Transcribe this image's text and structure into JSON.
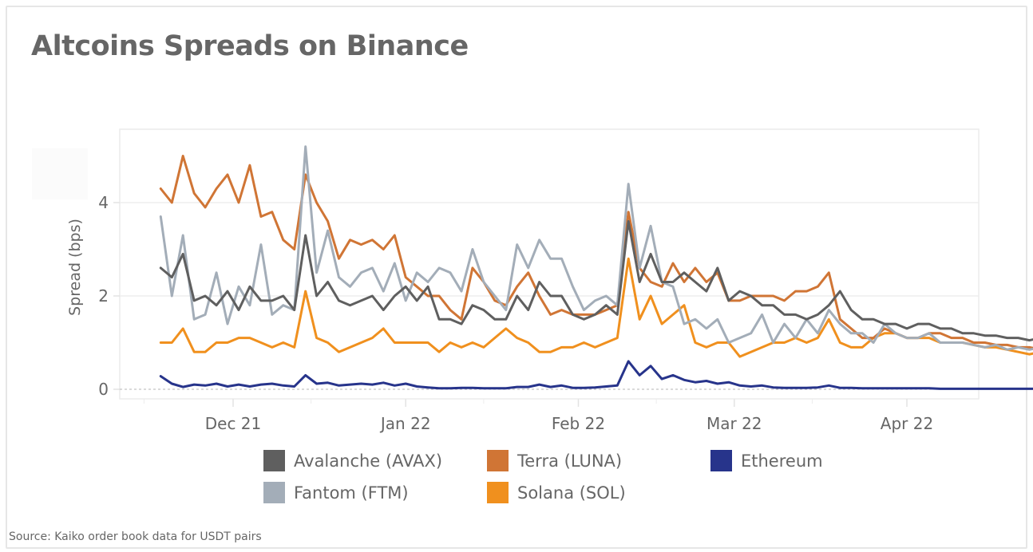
{
  "title": "Altcoins Spreads on Binance",
  "source": "Source: Kaiko order book data for USDT pairs",
  "chart_data": {
    "type": "line",
    "title": "Altcoins Spreads on Binance",
    "xlabel": "",
    "ylabel": "Spread (bps)",
    "ylim": [
      0,
      5.5
    ],
    "yticks": [
      0,
      2,
      4
    ],
    "ytick_labels": [
      "0",
      "2",
      "4"
    ],
    "xlim": [
      "2021-11-17",
      "2022-04-13"
    ],
    "xticks": [
      "2021-12-01",
      "2022-01-01",
      "2022-02-01",
      "2022-03-01",
      "2022-04-01"
    ],
    "xtick_labels": [
      "Dec 21",
      "Jan 22",
      "Feb 22",
      "Mar 22",
      "Apr 22"
    ],
    "grid": true,
    "legend_position": "bottom",
    "x_start": "2021-11-18",
    "x_step_days": 2,
    "series": [
      {
        "name": "Avalanche (AVAX)",
        "color": "#5f5f5f",
        "values": [
          2.6,
          2.4,
          2.9,
          1.9,
          2.0,
          1.8,
          2.1,
          1.7,
          2.2,
          1.9,
          1.9,
          2.0,
          1.7,
          3.3,
          2.0,
          2.3,
          1.9,
          1.8,
          1.9,
          2.0,
          1.7,
          2.0,
          2.2,
          1.9,
          2.2,
          1.5,
          1.5,
          1.4,
          1.8,
          1.7,
          1.5,
          1.5,
          2.0,
          1.7,
          2.3,
          2.0,
          2.0,
          1.6,
          1.5,
          1.6,
          1.8,
          1.6,
          3.6,
          2.3,
          2.9,
          2.3,
          2.3,
          2.5,
          2.3,
          2.1,
          2.6,
          1.9,
          2.1,
          2.0,
          1.8,
          1.8,
          1.6,
          1.6,
          1.5,
          1.6,
          1.8,
          2.1,
          1.7,
          1.5,
          1.5,
          1.4,
          1.4,
          1.3,
          1.4,
          1.4,
          1.3,
          1.3,
          1.2,
          1.2,
          1.15,
          1.15,
          1.1,
          1.1,
          1.05,
          1.1
        ]
      },
      {
        "name": "Fantom (FTM)",
        "color": "#a3adb8",
        "values": [
          3.7,
          2.0,
          3.3,
          1.5,
          1.6,
          2.5,
          1.4,
          2.2,
          1.8,
          3.1,
          1.6,
          1.8,
          1.7,
          5.2,
          2.5,
          3.4,
          2.4,
          2.2,
          2.5,
          2.6,
          2.1,
          2.7,
          1.9,
          2.5,
          2.3,
          2.6,
          2.5,
          2.1,
          3.0,
          2.3,
          2.0,
          1.7,
          3.1,
          2.6,
          3.2,
          2.8,
          2.8,
          2.2,
          1.7,
          1.9,
          2.0,
          1.8,
          4.4,
          2.6,
          3.5,
          2.3,
          2.2,
          1.4,
          1.5,
          1.3,
          1.5,
          1.0,
          1.1,
          1.2,
          1.6,
          1.0,
          1.4,
          1.1,
          1.5,
          1.2,
          1.7,
          1.4,
          1.2,
          1.2,
          1.0,
          1.4,
          1.2,
          1.1,
          1.1,
          1.2,
          1.0,
          1.0,
          1.0,
          0.95,
          0.9,
          0.95,
          0.85,
          0.9,
          0.85,
          0.9
        ]
      },
      {
        "name": "Terra (LUNA)",
        "color": "#d07535",
        "values": [
          4.3,
          4.0,
          5.0,
          4.2,
          3.9,
          4.3,
          4.6,
          4.0,
          4.8,
          3.7,
          3.8,
          3.2,
          3.0,
          4.6,
          4.0,
          3.6,
          2.8,
          3.2,
          3.1,
          3.2,
          3.0,
          3.3,
          2.4,
          2.2,
          2.0,
          2.0,
          1.7,
          1.5,
          2.6,
          2.3,
          1.9,
          1.8,
          2.2,
          2.5,
          2.0,
          1.6,
          1.7,
          1.6,
          1.6,
          1.6,
          1.7,
          1.8,
          3.8,
          2.6,
          2.3,
          2.2,
          2.7,
          2.3,
          2.6,
          2.3,
          2.5,
          1.9,
          1.9,
          2.0,
          2.0,
          2.0,
          1.9,
          2.1,
          2.1,
          2.2,
          2.5,
          1.5,
          1.3,
          1.1,
          1.1,
          1.3,
          1.2,
          1.1,
          1.1,
          1.2,
          1.2,
          1.1,
          1.1,
          1.0,
          1.0,
          0.95,
          0.95,
          0.9,
          0.9,
          0.85
        ]
      },
      {
        "name": "Solana (SOL)",
        "color": "#f0901e",
        "values": [
          1.0,
          1.0,
          1.3,
          0.8,
          0.8,
          1.0,
          1.0,
          1.1,
          1.1,
          1.0,
          0.9,
          1.0,
          0.9,
          2.1,
          1.1,
          1.0,
          0.8,
          0.9,
          1.0,
          1.1,
          1.3,
          1.0,
          1.0,
          1.0,
          1.0,
          0.8,
          1.0,
          0.9,
          1.0,
          0.9,
          1.1,
          1.3,
          1.1,
          1.0,
          0.8,
          0.8,
          0.9,
          0.9,
          1.0,
          0.9,
          1.0,
          1.1,
          2.8,
          1.5,
          2.0,
          1.4,
          1.6,
          1.8,
          1.0,
          0.9,
          1.0,
          1.0,
          0.7,
          0.8,
          0.9,
          1.0,
          1.0,
          1.1,
          1.0,
          1.1,
          1.5,
          1.0,
          0.9,
          0.9,
          1.1,
          1.2,
          1.2,
          1.1,
          1.1,
          1.1,
          1.0,
          1.0,
          1.0,
          0.95,
          0.9,
          0.9,
          0.85,
          0.8,
          0.75,
          0.8
        ]
      },
      {
        "name": "Ethereum",
        "color": "#27348b",
        "values": [
          0.28,
          0.12,
          0.05,
          0.1,
          0.08,
          0.12,
          0.06,
          0.1,
          0.06,
          0.1,
          0.12,
          0.08,
          0.06,
          0.3,
          0.12,
          0.14,
          0.08,
          0.1,
          0.12,
          0.1,
          0.14,
          0.08,
          0.12,
          0.06,
          0.04,
          0.02,
          0.02,
          0.03,
          0.03,
          0.02,
          0.02,
          0.02,
          0.05,
          0.05,
          0.1,
          0.05,
          0.08,
          0.03,
          0.03,
          0.04,
          0.06,
          0.08,
          0.6,
          0.3,
          0.5,
          0.22,
          0.3,
          0.2,
          0.15,
          0.18,
          0.12,
          0.15,
          0.08,
          0.06,
          0.08,
          0.04,
          0.03,
          0.03,
          0.03,
          0.04,
          0.08,
          0.03,
          0.03,
          0.02,
          0.02,
          0.02,
          0.02,
          0.02,
          0.02,
          0.02,
          0.01,
          0.01,
          0.01,
          0.01,
          0.01,
          0.01,
          0.01,
          0.01,
          0.01,
          0.01
        ]
      }
    ]
  },
  "legend": [
    {
      "label": "Avalanche (AVAX)",
      "color": "#5f5f5f"
    },
    {
      "label": "Terra (LUNA)",
      "color": "#d07535"
    },
    {
      "label": "Ethereum",
      "color": "#27348b"
    },
    {
      "label": "Fantom (FTM)",
      "color": "#a3adb8"
    },
    {
      "label": "Solana (SOL)",
      "color": "#f0901e"
    }
  ]
}
